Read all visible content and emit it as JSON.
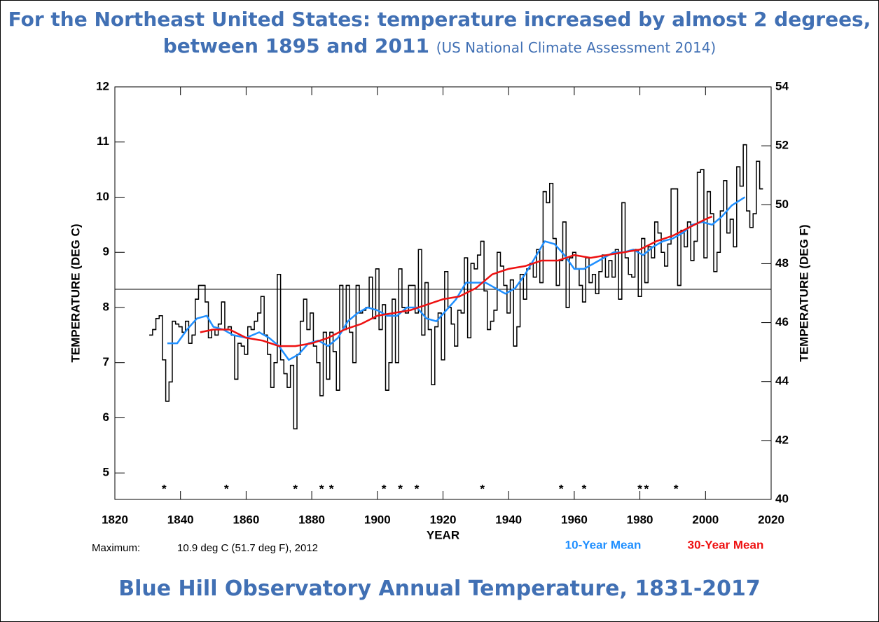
{
  "header": {
    "title": "For the Northeast United States: temperature increased by almost 2 degrees, between 1895 and 2011",
    "source": "(US National Climate Assessment 2014)"
  },
  "chart_data": {
    "type": "line",
    "xlabel": "YEAR",
    "ylabel": "TEMPERATURE (DEG C)",
    "y2label": "TEMPERATURE (DEG F)",
    "xlim": [
      1820,
      2020
    ],
    "xticks": [
      1820,
      1840,
      1860,
      1880,
      1900,
      1920,
      1940,
      1960,
      1980,
      2000,
      2020
    ],
    "ylim": [
      4.52,
      12
    ],
    "yticks": [
      5,
      6,
      7,
      8,
      9,
      10,
      11,
      12
    ],
    "y2lim": [
      40,
      54
    ],
    "y2ticks": [
      40,
      42,
      44,
      46,
      48,
      50,
      52,
      54
    ],
    "reference_line": 8.33,
    "star_years": [
      1835,
      1854,
      1875,
      1883,
      1886,
      1902,
      1907,
      1912,
      1932,
      1956,
      1963,
      1980,
      1982,
      1991
    ],
    "star_label": "*",
    "x": [
      1831,
      1832,
      1833,
      1834,
      1835,
      1836,
      1837,
      1838,
      1839,
      1840,
      1841,
      1842,
      1843,
      1844,
      1845,
      1846,
      1847,
      1848,
      1849,
      1850,
      1851,
      1852,
      1853,
      1854,
      1855,
      1856,
      1857,
      1858,
      1859,
      1860,
      1861,
      1862,
      1863,
      1864,
      1865,
      1866,
      1867,
      1868,
      1869,
      1870,
      1871,
      1872,
      1873,
      1874,
      1875,
      1876,
      1877,
      1878,
      1879,
      1880,
      1881,
      1882,
      1883,
      1884,
      1885,
      1886,
      1887,
      1888,
      1889,
      1890,
      1891,
      1892,
      1893,
      1894,
      1895,
      1896,
      1897,
      1898,
      1899,
      1900,
      1901,
      1902,
      1903,
      1904,
      1905,
      1906,
      1907,
      1908,
      1909,
      1910,
      1911,
      1912,
      1913,
      1914,
      1915,
      1916,
      1917,
      1918,
      1919,
      1920,
      1921,
      1922,
      1923,
      1924,
      1925,
      1926,
      1927,
      1928,
      1929,
      1930,
      1931,
      1932,
      1933,
      1934,
      1935,
      1936,
      1937,
      1938,
      1939,
      1940,
      1941,
      1942,
      1943,
      1944,
      1945,
      1946,
      1947,
      1948,
      1949,
      1950,
      1951,
      1952,
      1953,
      1954,
      1955,
      1956,
      1957,
      1958,
      1959,
      1960,
      1961,
      1962,
      1963,
      1964,
      1965,
      1966,
      1967,
      1968,
      1969,
      1970,
      1971,
      1972,
      1973,
      1974,
      1975,
      1976,
      1977,
      1978,
      1979,
      1980,
      1981,
      1982,
      1983,
      1984,
      1985,
      1986,
      1987,
      1988,
      1989,
      1990,
      1991,
      1992,
      1993,
      1994,
      1995,
      1996,
      1997,
      1998,
      1999,
      2000,
      2001,
      2002,
      2003,
      2004,
      2005,
      2006,
      2007,
      2008,
      2009,
      2010,
      2011,
      2012,
      2013,
      2014,
      2015,
      2016,
      2017
    ],
    "values": [
      7.5,
      7.6,
      7.8,
      7.85,
      7.05,
      6.3,
      6.65,
      7.75,
      7.7,
      7.65,
      7.55,
      7.75,
      7.35,
      7.5,
      8.15,
      8.4,
      8.4,
      8.1,
      7.45,
      7.6,
      7.5,
      7.7,
      8.1,
      7.6,
      7.65,
      7.5,
      6.7,
      7.35,
      7.3,
      7.15,
      7.65,
      7.6,
      7.75,
      7.9,
      8.2,
      7.5,
      7.15,
      6.55,
      7.0,
      8.6,
      7.05,
      6.8,
      6.55,
      6.95,
      5.8,
      7.15,
      7.75,
      8.15,
      7.6,
      7.9,
      7.3,
      7.0,
      6.4,
      7.55,
      6.7,
      7.55,
      7.2,
      6.5,
      8.4,
      7.6,
      8.4,
      7.55,
      7.0,
      8.4,
      7.9,
      7.95,
      8.0,
      8.55,
      7.8,
      8.7,
      7.6,
      8.05,
      6.5,
      7.0,
      8.15,
      7.0,
      8.7,
      8.0,
      7.9,
      8.4,
      8.4,
      7.9,
      9.05,
      7.5,
      8.45,
      7.6,
      6.6,
      7.65,
      7.9,
      7.05,
      8.65,
      8.0,
      7.7,
      7.3,
      7.95,
      7.9,
      8.9,
      7.45,
      8.8,
      8.7,
      8.95,
      9.2,
      8.3,
      7.6,
      7.75,
      7.95,
      9.0,
      8.75,
      8.4,
      7.9,
      8.5,
      7.3,
      7.65,
      8.6,
      8.15,
      8.7,
      8.8,
      8.55,
      9.05,
      8.45,
      10.1,
      9.9,
      10.25,
      9.25,
      8.4,
      8.85,
      9.55,
      8.0,
      8.9,
      9.0,
      8.7,
      8.4,
      8.1,
      8.9,
      8.45,
      8.6,
      8.25,
      8.65,
      8.95,
      8.55,
      8.85,
      8.55,
      9.05,
      8.15,
      9.9,
      8.9,
      8.6,
      8.55,
      9.05,
      8.2,
      9.25,
      8.45,
      9.1,
      8.9,
      9.55,
      9.35,
      9.0,
      8.75,
      9.15,
      10.15,
      10.15,
      8.4,
      9.4,
      9.1,
      9.55,
      8.85,
      9.2,
      10.45,
      10.5,
      8.9,
      10.1,
      9.7,
      8.65,
      9.0,
      9.75,
      10.3,
      9.35,
      9.6,
      9.1,
      10.55,
      10.2,
      10.95,
      9.75,
      9.45,
      9.7,
      10.65,
      10.15
    ],
    "color": "#000000",
    "series": [
      {
        "name": "10-Year Mean",
        "color": "#1f8fff",
        "x": [
          1836,
          1839,
          1842,
          1845,
          1848,
          1850,
          1853,
          1856,
          1860,
          1864,
          1867,
          1870,
          1873,
          1876,
          1879,
          1882,
          1885,
          1888,
          1891,
          1894,
          1897,
          1900,
          1903,
          1906,
          1909,
          1912,
          1915,
          1918,
          1921,
          1924,
          1927,
          1930,
          1933,
          1936,
          1939,
          1942,
          1945,
          1948,
          1951,
          1954,
          1957,
          1960,
          1963,
          1966,
          1969,
          1972,
          1975,
          1978,
          1981,
          1984,
          1987,
          1990,
          1993,
          1996,
          1999,
          2002,
          2005,
          2008,
          2012
        ],
        "values": [
          7.35,
          7.35,
          7.6,
          7.8,
          7.85,
          7.65,
          7.6,
          7.5,
          7.45,
          7.55,
          7.45,
          7.3,
          7.05,
          7.15,
          7.35,
          7.4,
          7.3,
          7.45,
          7.75,
          7.9,
          8.0,
          7.95,
          7.85,
          7.85,
          8.0,
          8.0,
          7.8,
          7.75,
          7.95,
          8.15,
          8.45,
          8.45,
          8.45,
          8.35,
          8.25,
          8.35,
          8.6,
          8.9,
          9.2,
          9.15,
          8.95,
          8.7,
          8.7,
          8.8,
          8.9,
          9.0,
          9.0,
          9.05,
          8.95,
          9.1,
          9.2,
          9.25,
          9.35,
          9.5,
          9.55,
          9.5,
          9.65,
          9.85,
          10.0
        ]
      },
      {
        "name": "30-Year Mean",
        "color": "#ee1111",
        "x": [
          1846,
          1850,
          1855,
          1860,
          1865,
          1870,
          1875,
          1880,
          1885,
          1890,
          1895,
          1900,
          1905,
          1910,
          1915,
          1920,
          1925,
          1930,
          1935,
          1940,
          1945,
          1950,
          1955,
          1960,
          1965,
          1970,
          1975,
          1980,
          1985,
          1990,
          1995,
          2000,
          2002
        ],
        "values": [
          7.55,
          7.6,
          7.6,
          7.45,
          7.4,
          7.3,
          7.3,
          7.35,
          7.45,
          7.6,
          7.7,
          7.85,
          7.9,
          7.95,
          8.05,
          8.15,
          8.2,
          8.35,
          8.6,
          8.7,
          8.75,
          8.85,
          8.85,
          8.95,
          8.9,
          8.95,
          9.0,
          9.05,
          9.2,
          9.3,
          9.45,
          9.6,
          9.65
        ]
      }
    ],
    "annotations": [
      "Maximum:",
      "10.9 deg C (51.7 deg F), 2012"
    ]
  },
  "footer": {
    "title": "Blue Hill Observatory Annual Temperature, 1831-2017"
  }
}
